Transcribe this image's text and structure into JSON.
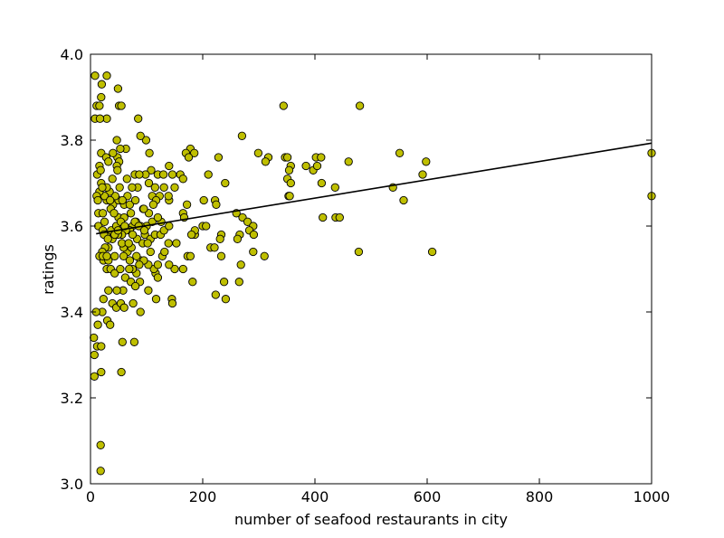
{
  "chart_data": {
    "type": "scatter",
    "title": "",
    "xlabel": "number of seafood restaurants in city",
    "ylabel": "ratings",
    "xlim": [
      0,
      1000
    ],
    "ylim": [
      3.0,
      4.0
    ],
    "xticks": [
      0,
      200,
      400,
      600,
      800,
      1000
    ],
    "yticks": [
      3.0,
      3.2,
      3.4,
      3.6,
      3.8,
      4.0
    ],
    "xtick_labels": [
      "0",
      "200",
      "400",
      "600",
      "800",
      "1000"
    ],
    "ytick_labels": [
      "3.0",
      "3.2",
      "3.4",
      "3.6",
      "3.8",
      "4.0"
    ],
    "grid": false,
    "marker_color": "#bfbf00",
    "marker_edge_color": "#000000",
    "trend_line": {
      "color": "#000000",
      "x": [
        10,
        1000
      ],
      "y": [
        3.582,
        3.793
      ]
    },
    "points": [
      [
        8,
        3.95
      ],
      [
        29,
        3.95
      ],
      [
        20,
        3.93
      ],
      [
        49,
        3.92
      ],
      [
        19,
        3.9
      ],
      [
        11,
        3.88
      ],
      [
        16,
        3.88
      ],
      [
        51,
        3.88
      ],
      [
        55,
        3.88
      ],
      [
        8,
        3.85
      ],
      [
        29,
        3.85
      ],
      [
        17,
        3.85
      ],
      [
        85,
        3.85
      ],
      [
        99,
        3.8
      ],
      [
        89,
        3.81
      ],
      [
        47,
        3.8
      ],
      [
        63,
        3.78
      ],
      [
        53,
        3.78
      ],
      [
        48,
        3.76
      ],
      [
        19,
        3.77
      ],
      [
        40,
        3.77
      ],
      [
        28,
        3.76
      ],
      [
        32,
        3.75
      ],
      [
        51,
        3.75
      ],
      [
        47,
        3.74
      ],
      [
        16,
        3.74
      ],
      [
        12,
        3.72
      ],
      [
        18,
        3.73
      ],
      [
        48,
        3.73
      ],
      [
        19,
        3.7
      ],
      [
        105,
        3.77
      ],
      [
        178,
        3.78
      ],
      [
        185,
        3.77
      ],
      [
        170,
        3.77
      ],
      [
        175,
        3.76
      ],
      [
        228,
        3.76
      ],
      [
        270,
        3.81
      ],
      [
        344,
        3.88
      ],
      [
        480,
        3.88
      ],
      [
        299,
        3.77
      ],
      [
        317,
        3.76
      ],
      [
        312,
        3.75
      ],
      [
        347,
        3.76
      ],
      [
        351,
        3.76
      ],
      [
        402,
        3.76
      ],
      [
        411,
        3.76
      ],
      [
        460,
        3.75
      ],
      [
        551,
        3.77
      ],
      [
        598,
        3.75
      ],
      [
        592,
        3.72
      ],
      [
        357,
        3.74
      ],
      [
        354,
        3.73
      ],
      [
        384,
        3.74
      ],
      [
        397,
        3.73
      ],
      [
        404,
        3.74
      ],
      [
        351,
        3.71
      ],
      [
        357,
        3.7
      ],
      [
        412,
        3.7
      ],
      [
        436,
        3.69
      ],
      [
        539,
        3.69
      ],
      [
        558,
        3.66
      ],
      [
        353,
        3.67
      ],
      [
        355,
        3.67
      ],
      [
        414,
        3.62
      ],
      [
        437,
        3.62
      ],
      [
        444,
        3.62
      ],
      [
        1000,
        3.77
      ],
      [
        1000,
        3.67
      ],
      [
        478,
        3.54
      ],
      [
        609,
        3.54
      ],
      [
        140,
        3.74
      ],
      [
        160,
        3.72
      ],
      [
        165,
        3.71
      ],
      [
        146,
        3.72
      ],
      [
        210,
        3.72
      ],
      [
        240,
        3.7
      ],
      [
        120,
        3.72
      ],
      [
        108,
        3.73
      ],
      [
        130,
        3.72
      ],
      [
        150,
        3.69
      ],
      [
        110,
        3.67
      ],
      [
        123,
        3.67
      ],
      [
        117,
        3.66
      ],
      [
        140,
        3.66
      ],
      [
        202,
        3.66
      ],
      [
        222,
        3.66
      ],
      [
        224,
        3.65
      ],
      [
        172,
        3.65
      ],
      [
        165,
        3.63
      ],
      [
        167,
        3.62
      ],
      [
        200,
        3.6
      ],
      [
        206,
        3.6
      ],
      [
        186,
        3.58
      ],
      [
        186,
        3.59
      ],
      [
        180,
        3.58
      ],
      [
        214,
        3.55
      ],
      [
        221,
        3.55
      ],
      [
        233,
        3.58
      ],
      [
        231,
        3.57
      ],
      [
        260,
        3.63
      ],
      [
        271,
        3.62
      ],
      [
        280,
        3.61
      ],
      [
        290,
        3.6
      ],
      [
        283,
        3.59
      ],
      [
        266,
        3.58
      ],
      [
        262,
        3.57
      ],
      [
        291,
        3.58
      ],
      [
        290,
        3.54
      ],
      [
        310,
        3.53
      ],
      [
        268,
        3.51
      ],
      [
        233,
        3.53
      ],
      [
        238,
        3.47
      ],
      [
        265,
        3.47
      ],
      [
        223,
        3.44
      ],
      [
        241,
        3.43
      ],
      [
        182,
        3.47
      ],
      [
        165,
        3.5
      ],
      [
        150,
        3.5
      ],
      [
        140,
        3.51
      ],
      [
        116,
        3.49
      ],
      [
        120,
        3.48
      ],
      [
        113,
        3.5
      ],
      [
        128,
        3.53
      ],
      [
        120,
        3.51
      ],
      [
        103,
        3.51
      ],
      [
        145,
        3.43
      ],
      [
        146,
        3.42
      ],
      [
        117,
        3.43
      ],
      [
        103,
        3.45
      ],
      [
        88,
        3.47
      ],
      [
        82,
        3.49
      ],
      [
        75,
        3.5
      ],
      [
        69,
        3.5
      ],
      [
        89,
        3.52
      ],
      [
        95,
        3.52
      ],
      [
        82,
        3.53
      ],
      [
        66,
        3.54
      ],
      [
        59,
        3.55
      ],
      [
        56,
        3.56
      ],
      [
        73,
        3.55
      ],
      [
        83,
        3.57
      ],
      [
        97,
        3.58
      ],
      [
        107,
        3.57
      ],
      [
        115,
        3.58
      ],
      [
        125,
        3.58
      ],
      [
        131,
        3.59
      ],
      [
        140,
        3.6
      ],
      [
        126,
        3.61
      ],
      [
        110,
        3.61
      ],
      [
        100,
        3.6
      ],
      [
        89,
        3.6
      ],
      [
        81,
        3.61
      ],
      [
        75,
        3.6
      ],
      [
        70,
        3.59
      ],
      [
        63,
        3.59
      ],
      [
        56,
        3.58
      ],
      [
        49,
        3.58
      ],
      [
        39,
        3.57
      ],
      [
        32,
        3.55
      ],
      [
        26,
        3.55
      ],
      [
        21,
        3.54
      ],
      [
        23,
        3.52
      ],
      [
        32,
        3.52
      ],
      [
        29,
        3.5
      ],
      [
        36,
        3.5
      ],
      [
        43,
        3.49
      ],
      [
        53,
        3.5
      ],
      [
        62,
        3.48
      ],
      [
        72,
        3.47
      ],
      [
        80,
        3.46
      ],
      [
        58,
        3.45
      ],
      [
        47,
        3.45
      ],
      [
        32,
        3.45
      ],
      [
        23,
        3.43
      ],
      [
        39,
        3.42
      ],
      [
        46,
        3.41
      ],
      [
        54,
        3.42
      ],
      [
        76,
        3.42
      ],
      [
        89,
        3.4
      ],
      [
        60,
        3.41
      ],
      [
        30,
        3.38
      ],
      [
        35,
        3.37
      ],
      [
        21,
        3.4
      ],
      [
        10,
        3.4
      ],
      [
        13,
        3.37
      ],
      [
        6,
        3.34
      ],
      [
        12,
        3.32
      ],
      [
        19,
        3.32
      ],
      [
        7,
        3.3
      ],
      [
        78,
        3.33
      ],
      [
        57,
        3.33
      ],
      [
        7,
        3.25
      ],
      [
        19,
        3.26
      ],
      [
        55,
        3.26
      ],
      [
        18,
        3.09
      ],
      [
        18,
        3.03
      ],
      [
        29,
        3.66
      ],
      [
        40,
        3.65
      ],
      [
        50,
        3.66
      ],
      [
        60,
        3.65
      ],
      [
        70,
        3.65
      ],
      [
        80,
        3.66
      ],
      [
        94,
        3.64
      ],
      [
        104,
        3.63
      ],
      [
        112,
        3.65
      ],
      [
        120,
        3.62
      ],
      [
        95,
        3.64
      ],
      [
        84,
        3.69
      ],
      [
        74,
        3.69
      ],
      [
        66,
        3.67
      ],
      [
        57,
        3.66
      ],
      [
        44,
        3.67
      ],
      [
        34,
        3.68
      ],
      [
        25,
        3.67
      ],
      [
        16,
        3.68
      ],
      [
        11,
        3.67
      ],
      [
        14,
        3.63
      ],
      [
        22,
        3.63
      ],
      [
        36,
        3.64
      ],
      [
        50,
        3.62
      ],
      [
        60,
        3.62
      ],
      [
        72,
        3.63
      ],
      [
        79,
        3.61
      ],
      [
        86,
        3.6
      ],
      [
        96,
        3.59
      ],
      [
        14,
        3.6
      ],
      [
        22,
        3.59
      ],
      [
        28,
        3.58
      ],
      [
        37,
        3.59
      ],
      [
        46,
        3.6
      ],
      [
        54,
        3.61
      ],
      [
        61,
        3.6
      ],
      [
        68,
        3.56
      ],
      [
        75,
        3.58
      ],
      [
        93,
        3.56
      ],
      [
        102,
        3.56
      ],
      [
        107,
        3.54
      ],
      [
        132,
        3.54
      ],
      [
        139,
        3.56
      ],
      [
        153,
        3.56
      ],
      [
        173,
        3.53
      ],
      [
        178,
        3.53
      ],
      [
        24,
        3.58
      ],
      [
        31,
        3.57
      ],
      [
        43,
        3.58
      ],
      [
        49,
        3.59
      ],
      [
        16,
        3.53
      ],
      [
        22,
        3.53
      ],
      [
        29,
        3.53
      ],
      [
        43,
        3.53
      ],
      [
        59,
        3.53
      ],
      [
        70,
        3.52
      ],
      [
        87,
        3.51
      ],
      [
        98,
        3.72
      ],
      [
        104,
        3.7
      ],
      [
        115,
        3.69
      ],
      [
        131,
        3.69
      ],
      [
        139,
        3.67
      ],
      [
        39,
        3.71
      ],
      [
        52,
        3.69
      ],
      [
        65,
        3.71
      ],
      [
        79,
        3.72
      ],
      [
        87,
        3.72
      ],
      [
        29,
        3.69
      ],
      [
        21,
        3.69
      ],
      [
        13,
        3.66
      ],
      [
        35,
        3.66
      ],
      [
        42,
        3.63
      ],
      [
        25,
        3.61
      ]
    ]
  }
}
